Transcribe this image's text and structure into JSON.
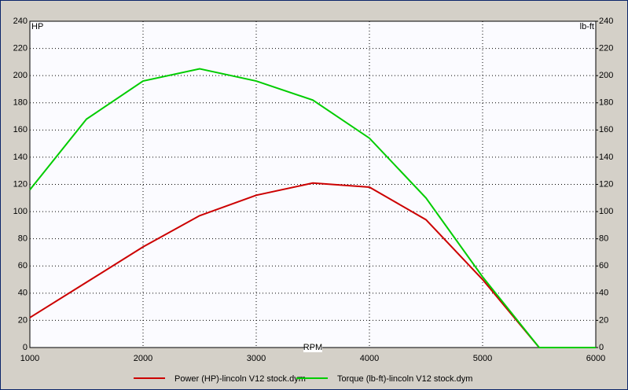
{
  "chart_data": {
    "type": "line",
    "y_label": "HP",
    "y2_label": "lb-ft",
    "x_label": "RPM",
    "x": [
      1000,
      1500,
      2000,
      2500,
      3000,
      3500,
      4000,
      4500,
      5000,
      5500,
      6000
    ],
    "series": [
      {
        "name": "Power (HP)-lincoln V12 stock.dym",
        "color": "#cc0000",
        "values": [
          22,
          48,
          74,
          97,
          112,
          121,
          118,
          94,
          50,
          0,
          0
        ]
      },
      {
        "name": "Torque (lb-ft)-lincoln V12 stock.dym",
        "color": "#00cc00",
        "axis": "y2",
        "values": [
          116,
          168,
          196,
          205,
          196,
          182,
          154,
          110,
          52,
          0,
          0
        ]
      }
    ],
    "xlim": [
      1000,
      6000
    ],
    "xticks": [
      1000,
      2000,
      3000,
      4000,
      5000,
      6000
    ],
    "ylim": [
      0,
      240
    ],
    "yticks": [
      0,
      20,
      40,
      60,
      80,
      100,
      120,
      140,
      160,
      180,
      200,
      220,
      240
    ],
    "y2lim": [
      0,
      240
    ],
    "y2ticks": [
      0,
      20,
      40,
      60,
      80,
      100,
      120,
      140,
      160,
      180,
      200,
      220,
      240
    ],
    "grid": true
  }
}
